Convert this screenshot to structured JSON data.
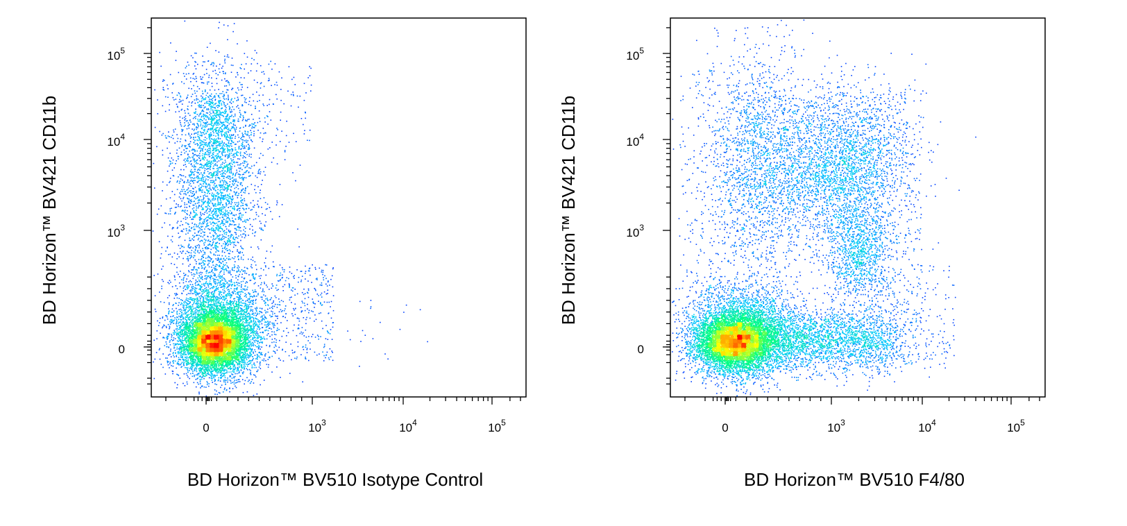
{
  "chart_data": [
    {
      "type": "scatter",
      "subtype": "flow-cytometry-density-dot-plot",
      "xlabel": "BD Horizon™ BV510 Isotype Control",
      "ylabel": "BD Horizon™ BV421 CD11b",
      "x_scale": "biexponential",
      "y_scale": "biexponential",
      "x_ticks": [
        {
          "value": 0,
          "base": "0",
          "exp": ""
        },
        {
          "value": 1000,
          "base": "10",
          "exp": "3"
        },
        {
          "value": 10000,
          "base": "10",
          "exp": "4"
        },
        {
          "value": 100000,
          "base": "10",
          "exp": "5"
        }
      ],
      "y_ticks": [
        {
          "value": 0,
          "base": "0",
          "exp": ""
        },
        {
          "value": 1000,
          "base": "10",
          "exp": "3"
        },
        {
          "value": 10000,
          "base": "10",
          "exp": "4"
        },
        {
          "value": 100000,
          "base": "10",
          "exp": "5"
        }
      ],
      "density_colormap": [
        "#0000ff",
        "#00c8ff",
        "#00ff80",
        "#ffff00",
        "#ff0000"
      ],
      "populations": [
        {
          "x_center": 30,
          "y_center": 0,
          "description": "dense CD11b-negative, isotype-negative cluster"
        },
        {
          "x_center": 60,
          "y_range": [
            1000,
            20000
          ],
          "description": "CD11b-positive, isotype-negative vertical streak"
        }
      ]
    },
    {
      "type": "scatter",
      "subtype": "flow-cytometry-density-dot-plot",
      "xlabel": "BD Horizon™ BV510 F4/80",
      "ylabel": "BD Horizon™ BV421 CD11b",
      "x_scale": "biexponential",
      "y_scale": "biexponential",
      "x_ticks": [
        {
          "value": 0,
          "base": "0",
          "exp": ""
        },
        {
          "value": 1000,
          "base": "10",
          "exp": "3"
        },
        {
          "value": 10000,
          "base": "10",
          "exp": "4"
        },
        {
          "value": 100000,
          "base": "10",
          "exp": "5"
        }
      ],
      "y_ticks": [
        {
          "value": 0,
          "base": "0",
          "exp": ""
        },
        {
          "value": 1000,
          "base": "10",
          "exp": "3"
        },
        {
          "value": 10000,
          "base": "10",
          "exp": "4"
        },
        {
          "value": 100000,
          "base": "10",
          "exp": "5"
        }
      ],
      "density_colormap": [
        "#0000ff",
        "#00c8ff",
        "#00ff80",
        "#ffff00",
        "#ff0000"
      ],
      "populations": [
        {
          "x_center": 30,
          "y_center": 0,
          "description": "dense CD11b-negative, F4/80-negative cluster"
        },
        {
          "x_center": 80,
          "y_range": [
            1000,
            20000
          ],
          "description": "CD11b-positive, F4/80-negative"
        },
        {
          "x_range": [
            500,
            4000
          ],
          "y_range": [
            1000,
            15000
          ],
          "description": "CD11b-positive, F4/80-positive"
        }
      ]
    }
  ]
}
